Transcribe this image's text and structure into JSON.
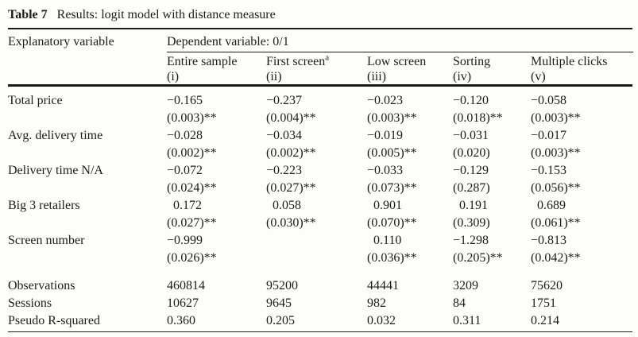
{
  "caption": {
    "label": "Table 7",
    "title": "Results: logit model with distance measure"
  },
  "header": {
    "explanatory": "Explanatory variable",
    "dependent": "Dependent variable: 0/1",
    "columns": [
      {
        "name": "Entire sample",
        "sup": "",
        "num": "(i)"
      },
      {
        "name": "First screen",
        "sup": "a",
        "num": "(ii)"
      },
      {
        "name": "Low screen",
        "sup": "",
        "num": "(iii)"
      },
      {
        "name": "Sorting",
        "sup": "",
        "num": "(iv)"
      },
      {
        "name": "Multiple clicks",
        "sup": "",
        "num": "(v)"
      }
    ]
  },
  "table": {
    "coef_rows": [
      {
        "label": "Total price",
        "cells": [
          {
            "coef": "−0.165",
            "se": "(0.003)**"
          },
          {
            "coef": "−0.237",
            "se": "(0.004)**"
          },
          {
            "coef": "−0.023",
            "se": "(0.003)**"
          },
          {
            "coef": "−0.120",
            "se": "(0.018)**"
          },
          {
            "coef": "−0.058",
            "se": "(0.003)**"
          }
        ]
      },
      {
        "label": "Avg. delivery time",
        "cells": [
          {
            "coef": "−0.028",
            "se": "(0.002)**"
          },
          {
            "coef": "−0.034",
            "se": "(0.002)**"
          },
          {
            "coef": "−0.019",
            "se": "(0.005)**"
          },
          {
            "coef": "−0.031",
            "se": "(0.020)"
          },
          {
            "coef": "−0.017",
            "se": "(0.003)**"
          }
        ]
      },
      {
        "label": "Delivery time N/A",
        "cells": [
          {
            "coef": "−0.072",
            "se": "(0.024)**"
          },
          {
            "coef": "−0.223",
            "se": "(0.027)**"
          },
          {
            "coef": "−0.033",
            "se": "(0.073)**"
          },
          {
            "coef": "−0.129",
            "se": "(0.287)"
          },
          {
            "coef": "−0.153",
            "se": "(0.056)**"
          }
        ]
      },
      {
        "label": "Big 3 retailers",
        "cells": [
          {
            "coef": "  0.172",
            "se": "(0.027)**"
          },
          {
            "coef": "  0.058",
            "se": "(0.030)**"
          },
          {
            "coef": "  0.901",
            "se": "(0.070)**"
          },
          {
            "coef": "  0.191",
            "se": "(0.309)"
          },
          {
            "coef": "  0.689",
            "se": "(0.061)**"
          }
        ]
      },
      {
        "label": "Screen number",
        "cells": [
          {
            "coef": "−0.999",
            "se": "(0.026)**"
          },
          {
            "coef": "",
            "se": ""
          },
          {
            "coef": "  0.110",
            "se": "(0.036)**"
          },
          {
            "coef": "−1.298",
            "se": "(0.205)**"
          },
          {
            "coef": "−0.813",
            "se": "(0.042)**"
          }
        ]
      }
    ],
    "stat_rows": [
      {
        "label": "Observations",
        "values": [
          "460814",
          "95200",
          "44441",
          "3209",
          "75620"
        ]
      },
      {
        "label": "Sessions",
        "values": [
          "10627",
          "9645",
          "982",
          "84",
          "1751"
        ]
      },
      {
        "label": "Pseudo R-squared",
        "values": [
          "0.360",
          "0.205",
          "0.032",
          "0.311",
          "0.214"
        ]
      }
    ]
  }
}
